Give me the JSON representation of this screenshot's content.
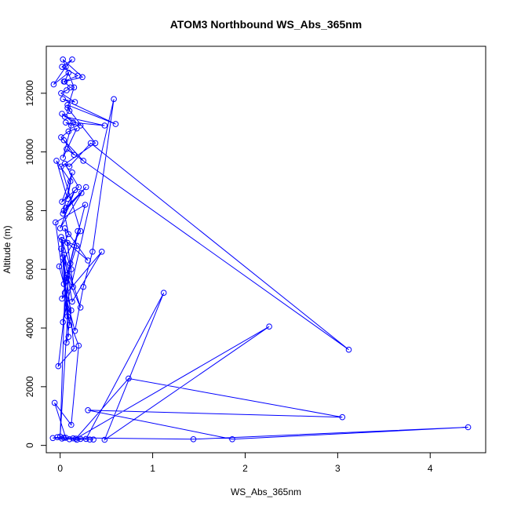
{
  "chart_data": {
    "type": "scatter",
    "title": "ATOM3 Northbound WS_Abs_365nm",
    "xlabel": "WS_Abs_365nm",
    "ylabel": "Altitude (m)",
    "xlim": [
      -0.15,
      4.6
    ],
    "ylim": [
      -250,
      13600
    ],
    "xticks": [
      0,
      1,
      2,
      3,
      4
    ],
    "xtick_labels": [
      "0",
      "1",
      "2",
      "3",
      "4"
    ],
    "yticks": [
      0,
      2000,
      4000,
      6000,
      8000,
      10000,
      12000
    ],
    "ytick_labels": [
      "0",
      "2000",
      "4000",
      "6000",
      "8000",
      "10000",
      "12000"
    ],
    "grid": false,
    "legend": "none",
    "color": "#0000ff",
    "series": [
      {
        "x": [
          0.36,
          0.32,
          0.22,
          0.14,
          0.04,
          -0.03,
          -0.08,
          0.02,
          0.1,
          0.18,
          0.28,
          1.12,
          0.48,
          2.26,
          0.17,
          0.74,
          3.05,
          0.3,
          1.86,
          4.41,
          1.44,
          0.06,
          -0.06,
          0.12,
          0.2,
          0.08,
          0.0,
          0.05,
          0.16,
          0.25,
          0.35,
          0.58,
          0.03,
          0.11,
          -0.02,
          0.15,
          0.07,
          0.22,
          0.04,
          0.09,
          0.01,
          0.13,
          0.45,
          0.02,
          0.19,
          0.06,
          0.27,
          -0.05,
          0.1,
          0.03,
          0.14,
          0.08,
          0.3,
          0.05,
          0.12,
          0.02,
          0.18,
          0.07,
          0.01,
          0.09,
          0.04,
          0.23,
          0.0,
          0.16,
          0.06,
          0.28,
          0.03,
          0.11,
          -0.04,
          0.08,
          0.13,
          0.02,
          0.2,
          0.05,
          0.1,
          0.33,
          3.12,
          0.07,
          0.15,
          0.04,
          0.25,
          0.01,
          0.09,
          0.18,
          0.03,
          0.12,
          0.06,
          0.22,
          0.02,
          0.14,
          0.48,
          0.05,
          0.1,
          0.08,
          0.6,
          0.03,
          0.16,
          0.01,
          0.07,
          0.11,
          0.04,
          0.19,
          0.02,
          0.13,
          0.06,
          -0.07,
          0.09,
          0.05,
          0.24,
          0.03,
          0.15,
          0.08,
          0.38,
          0.01,
          0.22,
          -0.01,
          0.04,
          0.12,
          0.07
        ],
        "y": [
          200,
          200,
          220,
          240,
          260,
          280,
          250,
          230,
          210,
          190,
          220,
          5200,
          190,
          4050,
          230,
          2280,
          960,
          1200,
          210,
          620,
          210,
          260,
          1450,
          700,
          3400,
          4400,
          300,
          5200,
          3900,
          5400,
          6600,
          11800,
          4200,
          6200,
          2700,
          3300,
          5800,
          4700,
          6500,
          3700,
          7100,
          4900,
          6600,
          5000,
          7300,
          5600,
          8200,
          7600,
          4100,
          6400,
          5400,
          6900,
          6300,
          7400,
          6000,
          7000,
          6800,
          5700,
          6700,
          7200,
          8000,
          8600,
          7400,
          8700,
          8100,
          8800,
          7900,
          9000,
          9700,
          8400,
          9300,
          8300,
          8800,
          9600,
          9500,
          10300,
          3260,
          10100,
          9900,
          10400,
          9700,
          10500,
          10700,
          10800,
          9800,
          10900,
          11000,
          10900,
          11300,
          11000,
          10900,
          11200,
          11400,
          11600,
          10950,
          11800,
          11700,
          12000,
          12100,
          12200,
          12400,
          12600,
          12900,
          13150,
          12900,
          12300,
          12700,
          12400,
          12550,
          13150,
          12200,
          11500,
          10300,
          9500,
          7300,
          6100,
          5500,
          4600,
          3500
        ]
      }
    ]
  }
}
